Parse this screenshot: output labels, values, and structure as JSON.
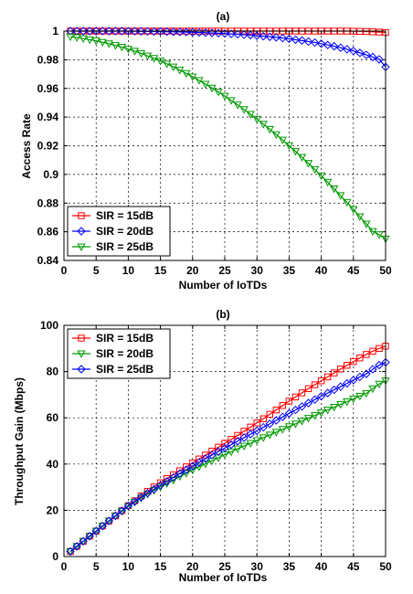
{
  "chart_data": [
    {
      "type": "line",
      "title": "(a)",
      "xlabel": "Number of IoTDs",
      "ylabel": "Access Rate",
      "xlim": [
        0,
        50
      ],
      "ylim": [
        0.84,
        1.0
      ],
      "xticks": [
        0,
        5,
        10,
        15,
        20,
        25,
        30,
        35,
        40,
        45,
        50
      ],
      "yticks": [
        0.84,
        0.86,
        0.88,
        0.9,
        0.92,
        0.94,
        0.96,
        0.98,
        1
      ],
      "ytick_labels": [
        "0.84",
        "0.86",
        "0.88",
        "0.9",
        "0.92",
        "0.94",
        "0.96",
        "0.98",
        "1"
      ],
      "grid": true,
      "legend_position": "bottom-left",
      "x": [
        1,
        2,
        3,
        4,
        5,
        6,
        7,
        8,
        9,
        10,
        11,
        12,
        13,
        14,
        15,
        16,
        17,
        18,
        19,
        20,
        21,
        22,
        23,
        24,
        25,
        26,
        27,
        28,
        29,
        30,
        31,
        32,
        33,
        34,
        35,
        36,
        37,
        38,
        39,
        40,
        41,
        42,
        43,
        44,
        45,
        46,
        47,
        48,
        49,
        50
      ],
      "series": [
        {
          "name": "SIR = 15dB",
          "color": "#ff0000",
          "marker": "square",
          "values": [
            1.0,
            1.0,
            1.0,
            1.0,
            1.0,
            1.0,
            1.0,
            1.0,
            1.0,
            1.0,
            1.0,
            1.0,
            1.0,
            1.0,
            1.0,
            1.0,
            1.0,
            1.0,
            1.0,
            1.0,
            1.0,
            1.0,
            1.0,
            1.0,
            1.0,
            1.0,
            1.0,
            1.0,
            1.0,
            1.0,
            1.0,
            1.0,
            1.0,
            1.0,
            1.0,
            1.0,
            1.0,
            1.0,
            1.0,
            1.0,
            1.0,
            1.0,
            1.0,
            1.0,
            0.9999,
            0.9998,
            0.9997,
            0.9995,
            0.9993,
            0.999
          ]
        },
        {
          "name": "SIR = 20dB",
          "color": "#0000ff",
          "marker": "diamond",
          "values": [
            1.0,
            1.0,
            1.0,
            1.0,
            1.0,
            1.0,
            1.0,
            1.0,
            1.0,
            0.9999,
            0.9999,
            0.9998,
            0.9998,
            0.9997,
            0.9997,
            0.9996,
            0.9995,
            0.9994,
            0.9993,
            0.9992,
            0.999,
            0.9989,
            0.9987,
            0.9985,
            0.9983,
            0.998,
            0.9978,
            0.9975,
            0.9972,
            0.9968,
            0.9964,
            0.996,
            0.9956,
            0.9951,
            0.9946,
            0.994,
            0.9934,
            0.9927,
            0.992,
            0.9912,
            0.9903,
            0.9894,
            0.9884,
            0.9873,
            0.9861,
            0.9848,
            0.9834,
            0.9819,
            0.9803,
            0.975
          ]
        },
        {
          "name": "SIR = 25dB",
          "color": "#009900",
          "marker": "triangle-down",
          "values": [
            0.996,
            0.9955,
            0.9948,
            0.994,
            0.9932,
            0.9922,
            0.9912,
            0.99,
            0.9888,
            0.9874,
            0.986,
            0.9844,
            0.9827,
            0.981,
            0.9791,
            0.9771,
            0.975,
            0.9728,
            0.9705,
            0.9681,
            0.9656,
            0.963,
            0.9603,
            0.9575,
            0.9546,
            0.9516,
            0.9485,
            0.9453,
            0.942,
            0.9386,
            0.9351,
            0.9315,
            0.9278,
            0.924,
            0.9201,
            0.9161,
            0.912,
            0.9078,
            0.9035,
            0.8991,
            0.8946,
            0.89,
            0.8853,
            0.8805,
            0.8756,
            0.8706,
            0.8655,
            0.8603,
            0.858,
            0.855
          ]
        }
      ]
    },
    {
      "type": "line",
      "title": "(b)",
      "xlabel": "Number of IoTDs",
      "ylabel": "Throughput Gain (Mbps)",
      "xlim": [
        0,
        50
      ],
      "ylim": [
        0,
        100
      ],
      "xticks": [
        0,
        5,
        10,
        15,
        20,
        25,
        30,
        35,
        40,
        45,
        50
      ],
      "yticks": [
        0,
        20,
        40,
        60,
        80,
        100
      ],
      "ytick_labels": [
        "0",
        "20",
        "40",
        "60",
        "80",
        "100"
      ],
      "grid": true,
      "legend_position": "top-left",
      "x": [
        1,
        2,
        3,
        4,
        5,
        6,
        7,
        8,
        9,
        10,
        11,
        12,
        13,
        14,
        15,
        16,
        17,
        18,
        19,
        20,
        21,
        22,
        23,
        24,
        25,
        26,
        27,
        28,
        29,
        30,
        31,
        32,
        33,
        34,
        35,
        36,
        37,
        38,
        39,
        40,
        41,
        42,
        43,
        44,
        45,
        46,
        47,
        48,
        49,
        50
      ],
      "series": [
        {
          "name": "SIR = 15dB",
          "color": "#ff0000",
          "marker": "square",
          "values": [
            2.2,
            4.4,
            6.6,
            8.8,
            11.0,
            13.2,
            15.4,
            17.6,
            19.8,
            22.0,
            24.1,
            26.2,
            28.2,
            30.1,
            31.9,
            33.7,
            35.4,
            37.1,
            38.8,
            40.5,
            42.2,
            43.9,
            45.6,
            47.3,
            49.0,
            50.7,
            52.4,
            54.2,
            56.0,
            57.8,
            59.6,
            61.5,
            63.4,
            65.3,
            67.2,
            69.0,
            70.8,
            72.6,
            74.3,
            76.0,
            77.7,
            79.4,
            81.1,
            82.7,
            84.3,
            85.9,
            87.4,
            88.8,
            90.0,
            91.0
          ]
        },
        {
          "name": "SIR = 20dB",
          "color": "#009900",
          "marker": "triangle-down",
          "values": [
            2.2,
            4.4,
            6.6,
            8.8,
            11.0,
            13.2,
            15.4,
            17.5,
            19.6,
            21.6,
            23.5,
            25.3,
            27.0,
            28.6,
            30.1,
            31.6,
            33.1,
            34.6,
            36.0,
            37.4,
            38.8,
            40.1,
            41.4,
            42.7,
            44.0,
            45.3,
            46.6,
            47.8,
            49.0,
            50.2,
            51.4,
            52.6,
            53.8,
            55.0,
            56.2,
            57.4,
            58.6,
            59.8,
            61.0,
            62.2,
            63.4,
            64.6,
            65.8,
            67.0,
            68.2,
            69.4,
            70.6,
            72.6,
            74.6,
            76.0
          ]
        },
        {
          "name": "SIR = 25dB",
          "color": "#0000ff",
          "marker": "diamond",
          "values": [
            2.2,
            4.4,
            6.6,
            8.8,
            11.0,
            13.2,
            15.4,
            17.6,
            19.8,
            21.9,
            23.8,
            25.6,
            27.4,
            29.1,
            30.8,
            32.5,
            34.2,
            35.9,
            37.5,
            39.1,
            40.7,
            42.3,
            43.9,
            45.4,
            46.9,
            48.4,
            49.9,
            51.4,
            52.9,
            54.4,
            55.9,
            57.4,
            58.9,
            60.4,
            61.9,
            63.4,
            64.9,
            66.4,
            67.9,
            69.3,
            70.7,
            72.1,
            73.5,
            74.9,
            76.3,
            77.7,
            79.0,
            81.0,
            82.8,
            84.0
          ]
        }
      ]
    }
  ]
}
